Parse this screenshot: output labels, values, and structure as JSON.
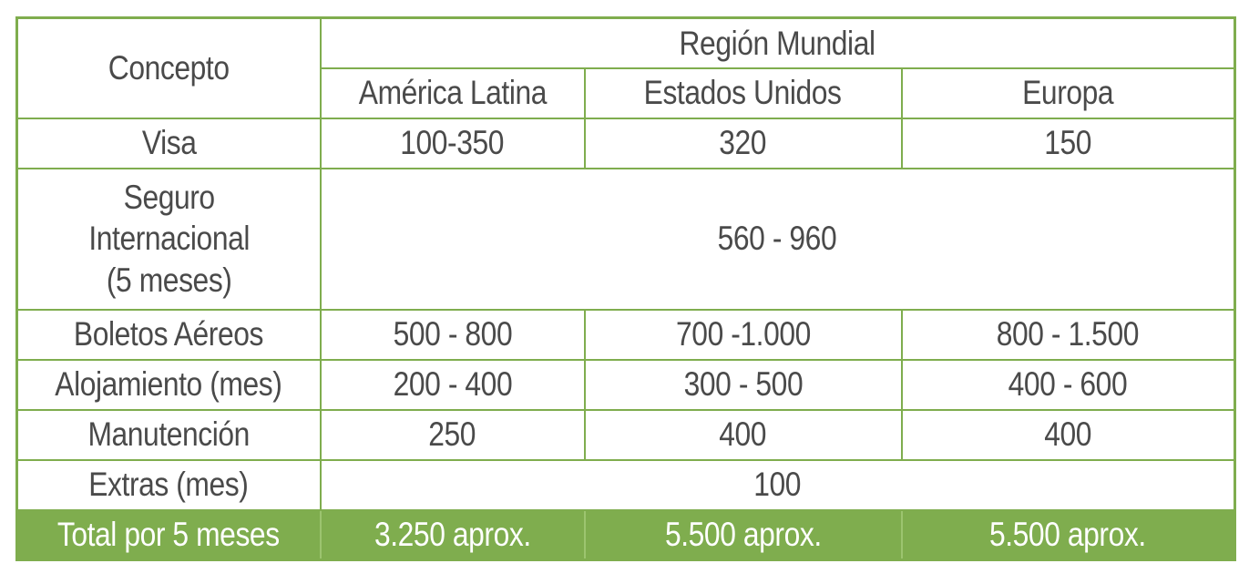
{
  "table": {
    "concept_header": "Concepto",
    "region_header": "Región Mundial",
    "regions": [
      "América Latina",
      "Estados Unidos",
      "Europa"
    ],
    "rows": [
      {
        "concept": "Visa",
        "values": [
          "100-350",
          "320",
          "150"
        ]
      },
      {
        "concept_lines": [
          "Seguro",
          "Internacional",
          "(5 meses)"
        ],
        "merged_value": "560 - 960"
      },
      {
        "concept": "Boletos Aéreos",
        "values": [
          "500 - 800",
          "700 -1.000",
          "800 - 1.500"
        ]
      },
      {
        "concept": "Alojamiento (mes)",
        "values": [
          "200 - 400",
          "300 - 500",
          "400 - 600"
        ]
      },
      {
        "concept": "Manutención",
        "values": [
          "250",
          "400",
          "400"
        ]
      },
      {
        "concept": "Extras (mes)",
        "merged_value": "100"
      }
    ],
    "total": {
      "concept": "Total por 5 meses",
      "values": [
        "3.250 aprox.",
        "5.500 aprox.",
        "5.500 aprox."
      ]
    }
  },
  "colors": {
    "border": "#7fad4e",
    "total_background": "#7fad4e",
    "text": "#4a4a4a",
    "total_text": "#ffffff"
  }
}
